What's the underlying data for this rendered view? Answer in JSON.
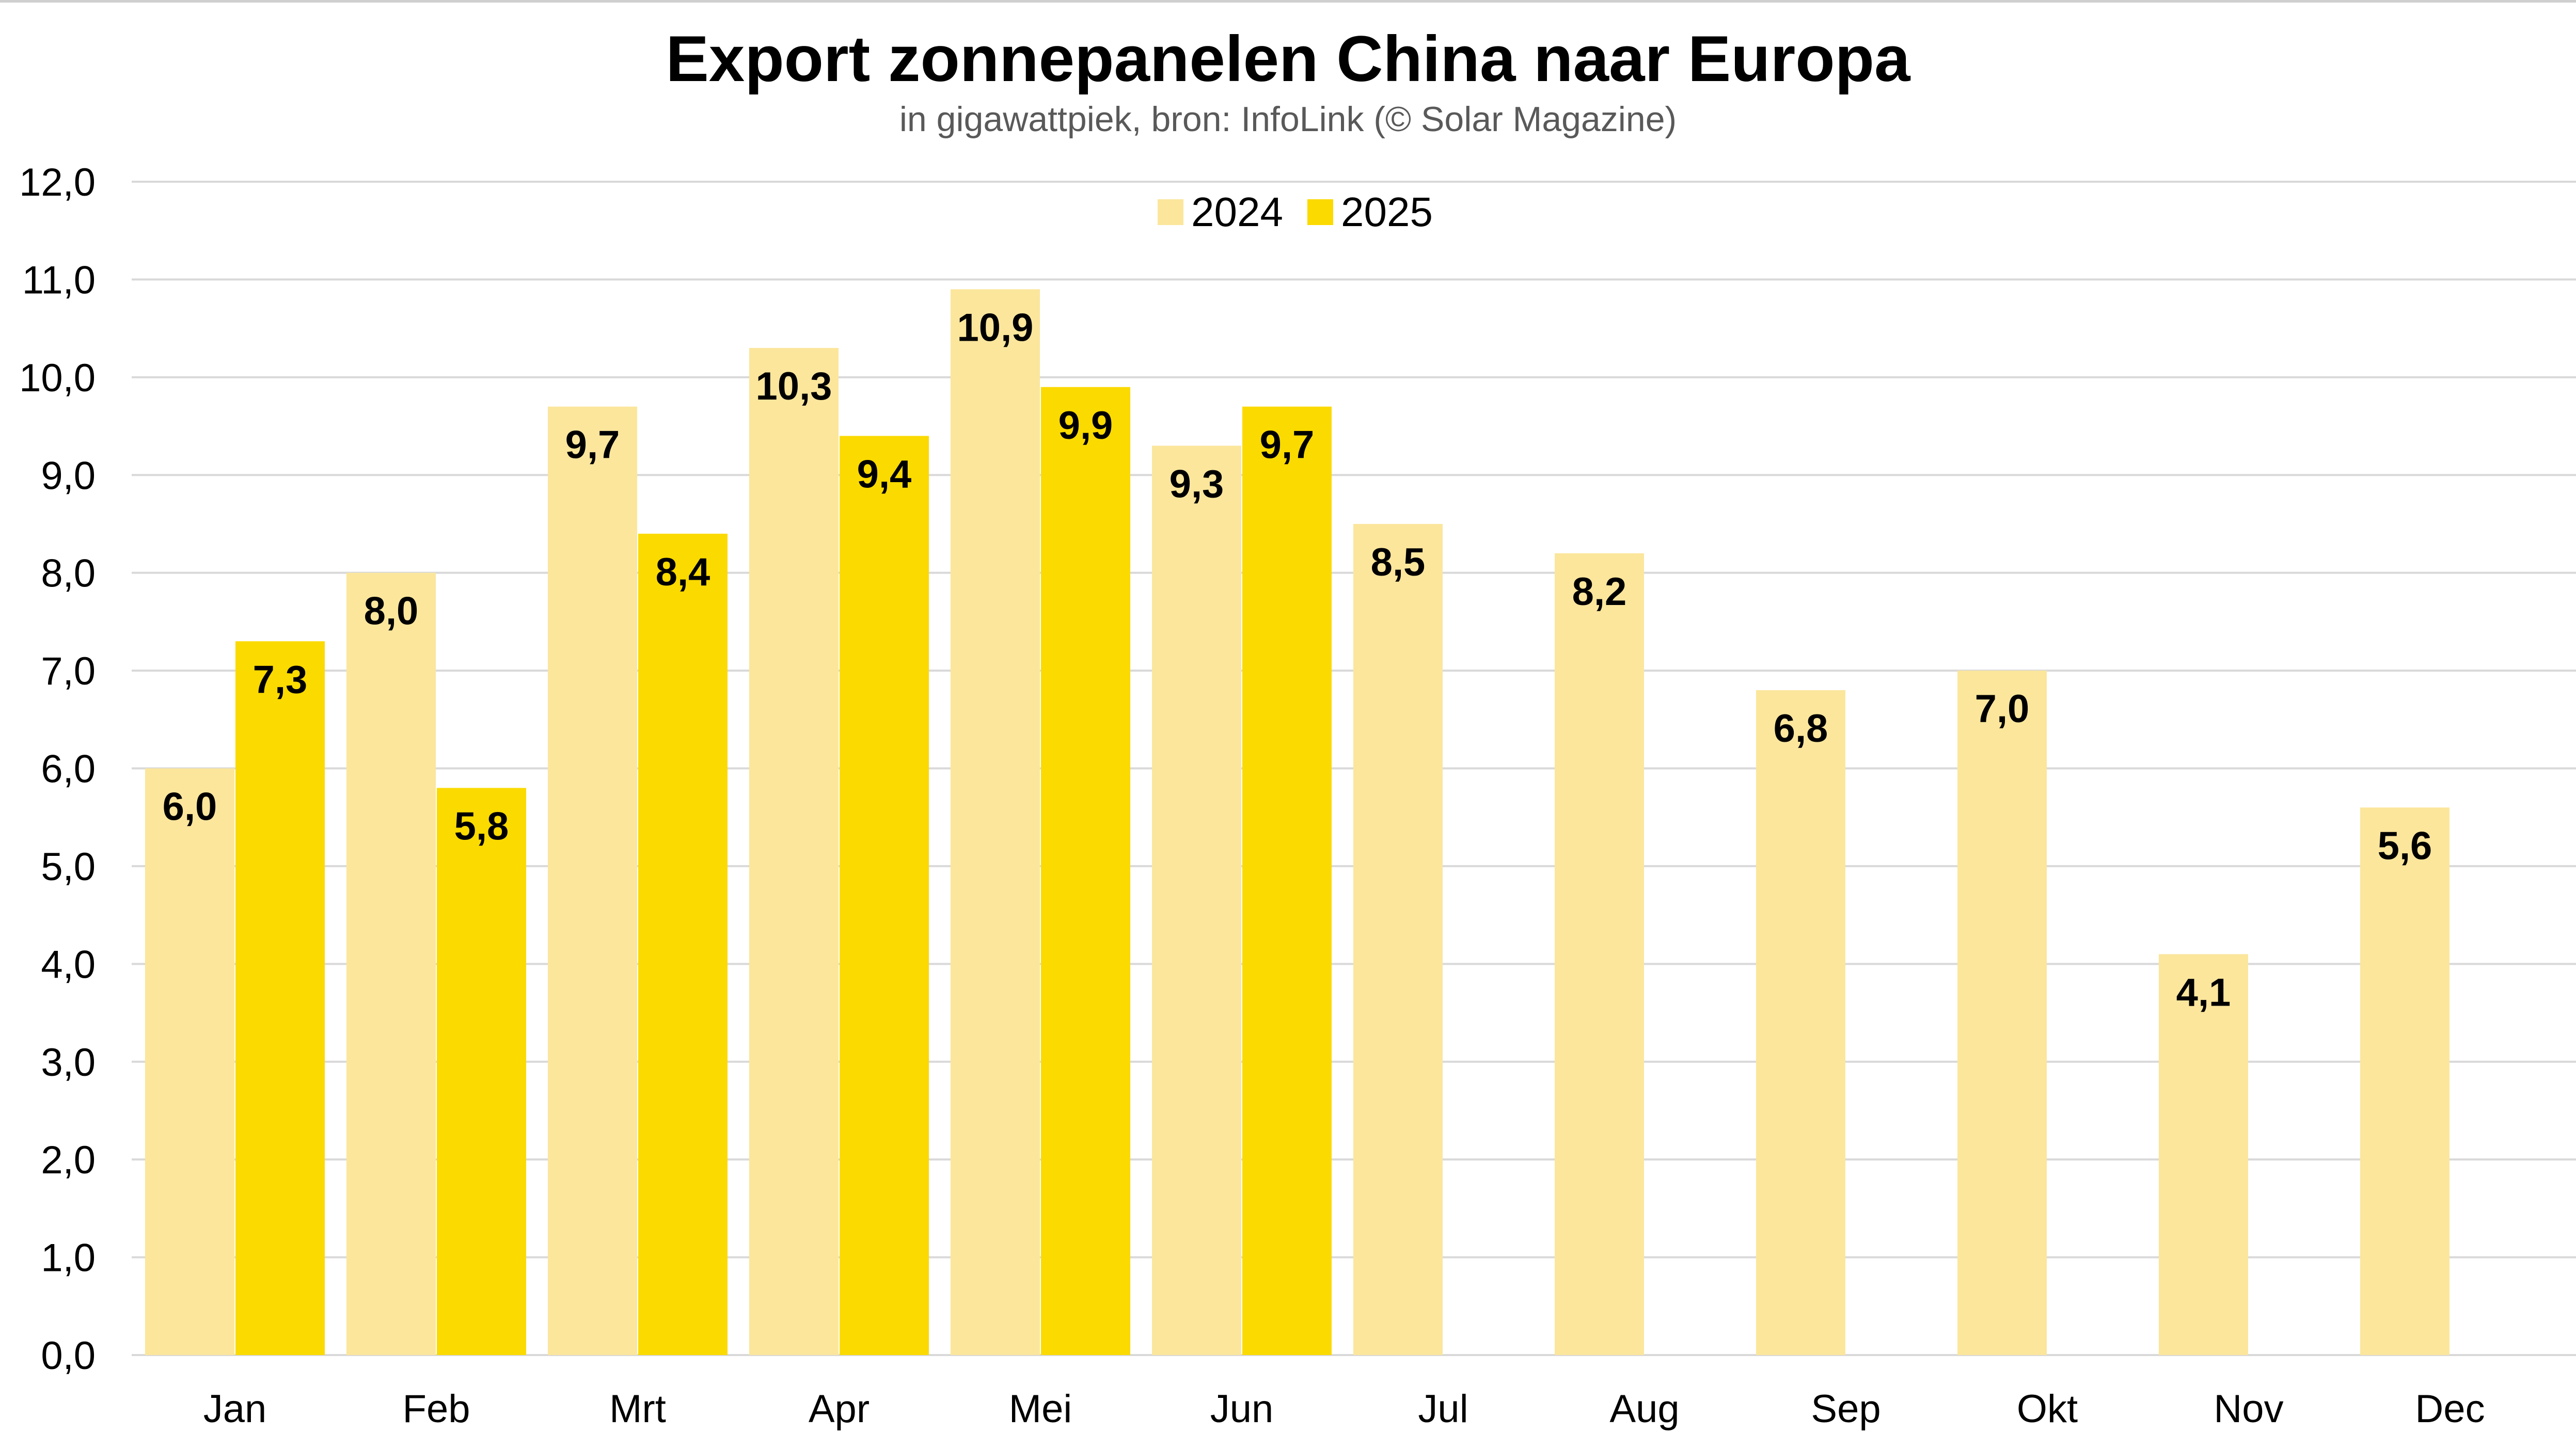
{
  "chart_data": {
    "type": "bar",
    "title": "Export zonnepanelen China naar Europa",
    "subtitle": "in gigawattpiek, bron: InfoLink (© Solar Magazine)",
    "categories": [
      "Jan",
      "Feb",
      "Mrt",
      "Apr",
      "Mei",
      "Jun",
      "Jul",
      "Aug",
      "Sep",
      "Okt",
      "Nov",
      "Dec"
    ],
    "series": [
      {
        "name": "2024",
        "color": "#FBE69C",
        "values": [
          6.0,
          8.0,
          9.7,
          10.3,
          10.9,
          9.3,
          8.5,
          8.2,
          6.8,
          7.0,
          4.1,
          5.6
        ]
      },
      {
        "name": "2025",
        "color": "#FBDA00",
        "values": [
          7.3,
          5.8,
          8.4,
          9.4,
          9.9,
          9.7,
          null,
          null,
          null,
          null,
          null,
          null
        ]
      }
    ],
    "ylim": [
      0,
      12
    ],
    "yticks": [
      "0,0",
      "1,0",
      "2,0",
      "3,0",
      "4,0",
      "5,0",
      "6,0",
      "7,0",
      "8,0",
      "9,0",
      "10,0",
      "11,0",
      "12,0"
    ],
    "data_labels": [
      [
        "6,0",
        "8,0",
        "9,7",
        "10,3",
        "10,9",
        "9,3",
        "8,5",
        "8,2",
        "6,8",
        "7,0",
        "4,1",
        "5,6"
      ],
      [
        "7,3",
        "5,8",
        "8,4",
        "9,4",
        "9,9",
        "9,7",
        null,
        null,
        null,
        null,
        null,
        null
      ]
    ],
    "grid": true,
    "gridline_color": "#D9D9D9",
    "legend_position": "top-center"
  }
}
